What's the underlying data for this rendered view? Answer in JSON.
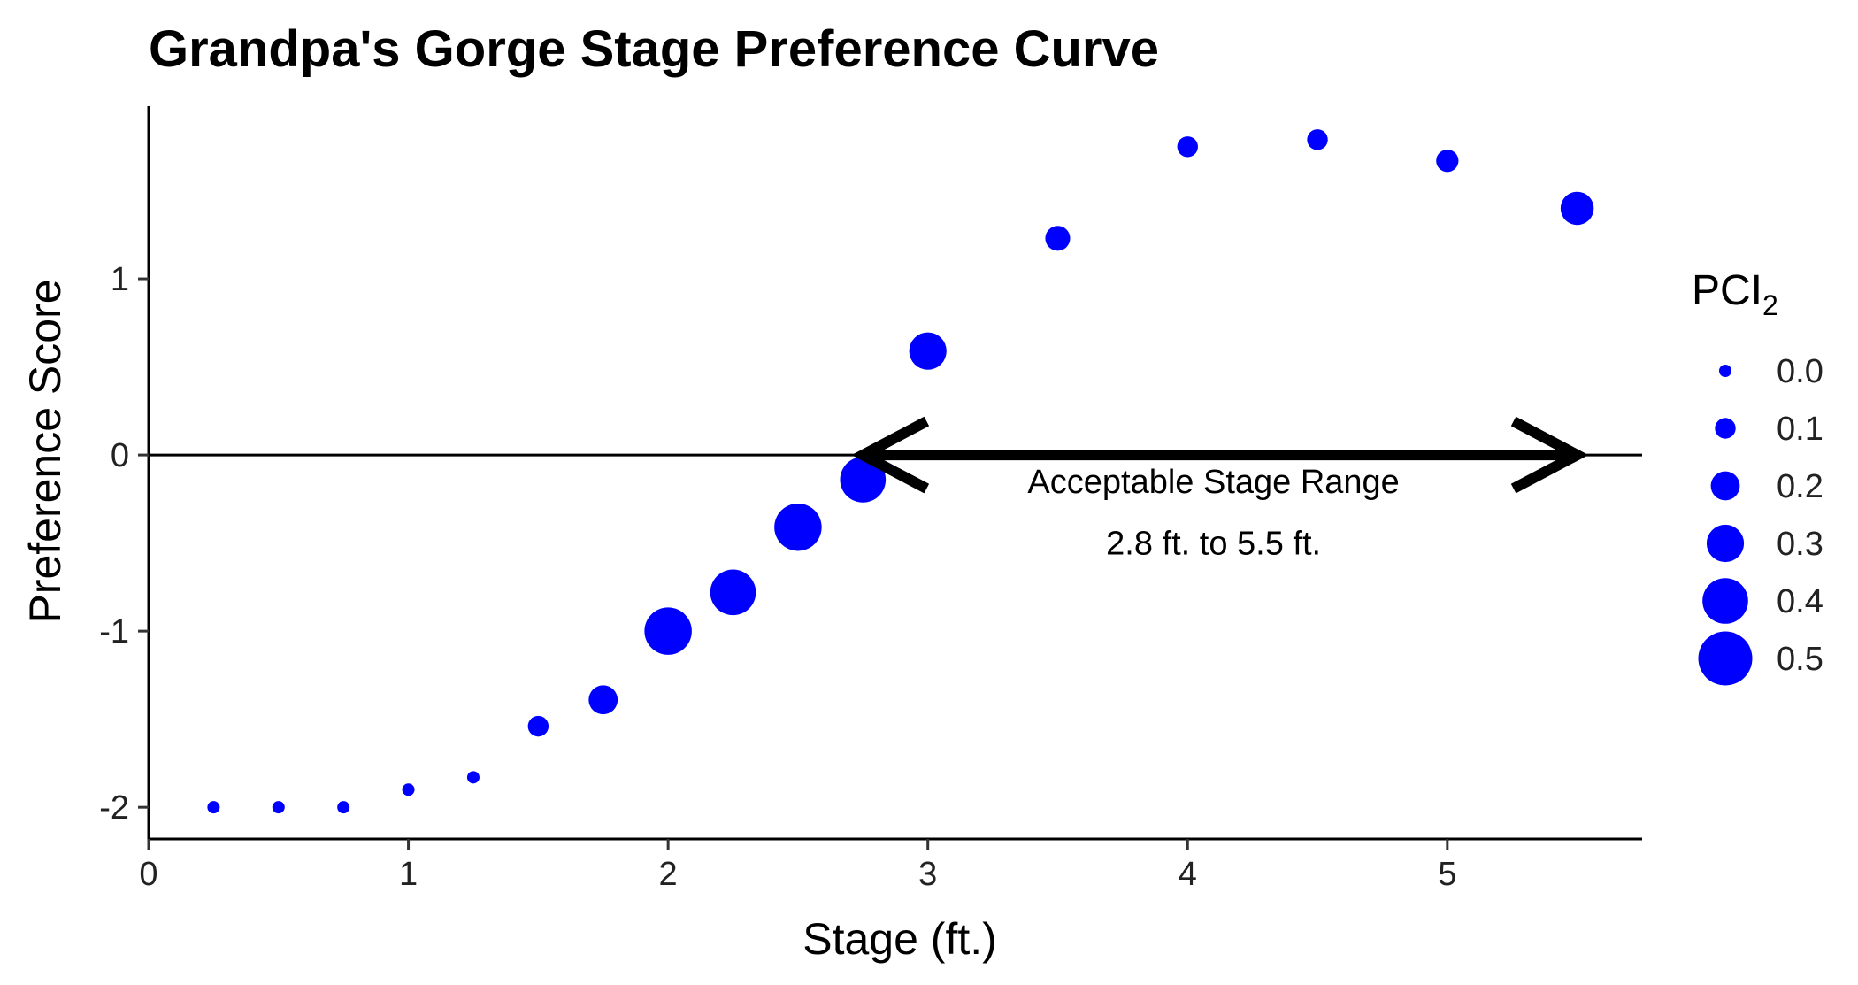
{
  "chart_data": {
    "type": "scatter",
    "title": "Grandpa's Gorge Stage Preference Curve",
    "xlabel": "Stage (ft.)",
    "ylabel": "Preference Score",
    "xlim": [
      0,
      5.75
    ],
    "ylim": [
      -2.18,
      1.98
    ],
    "x_ticks": [
      0,
      1,
      2,
      3,
      4,
      5
    ],
    "y_ticks": [
      -2,
      -1,
      0,
      1
    ],
    "grid": false,
    "point_color": "#0000FF",
    "reference_line_y": 0,
    "size_legend": {
      "title": "PCI",
      "title_subscript": "2",
      "placement": "right",
      "values": [
        0.0,
        0.1,
        0.2,
        0.3,
        0.4,
        0.5
      ],
      "labels": [
        "0.0",
        "0.1",
        "0.2",
        "0.3",
        "0.4",
        "0.5"
      ]
    },
    "points": [
      {
        "x": 0.25,
        "y": -2.0,
        "pci2": 0.0
      },
      {
        "x": 0.5,
        "y": -2.0,
        "pci2": 0.0
      },
      {
        "x": 0.75,
        "y": -2.0,
        "pci2": 0.0
      },
      {
        "x": 1.0,
        "y": -1.9,
        "pci2": 0.0
      },
      {
        "x": 1.25,
        "y": -1.83,
        "pci2": 0.0
      },
      {
        "x": 1.5,
        "y": -1.54,
        "pci2": 0.1
      },
      {
        "x": 1.75,
        "y": -1.39,
        "pci2": 0.2
      },
      {
        "x": 2.0,
        "y": -1.0,
        "pci2": 0.42
      },
      {
        "x": 2.25,
        "y": -0.78,
        "pci2": 0.4
      },
      {
        "x": 2.5,
        "y": -0.41,
        "pci2": 0.42
      },
      {
        "x": 2.75,
        "y": -0.14,
        "pci2": 0.4
      },
      {
        "x": 3.0,
        "y": 0.59,
        "pci2": 0.3
      },
      {
        "x": 3.5,
        "y": 1.23,
        "pci2": 0.15
      },
      {
        "x": 4.0,
        "y": 1.75,
        "pci2": 0.1
      },
      {
        "x": 4.5,
        "y": 1.79,
        "pci2": 0.1
      },
      {
        "x": 5.0,
        "y": 1.67,
        "pci2": 0.12
      },
      {
        "x": 5.5,
        "y": 1.4,
        "pci2": 0.25
      }
    ],
    "annotation": {
      "arrow_from_x": 2.75,
      "arrow_to_x": 5.5,
      "arrow_y": 0,
      "line1": "Acceptable Stage Range",
      "line2": "2.8 ft. to 5.5 ft.",
      "label_x": 4.1,
      "line1_y": -0.15,
      "line2_y": -0.5
    }
  }
}
